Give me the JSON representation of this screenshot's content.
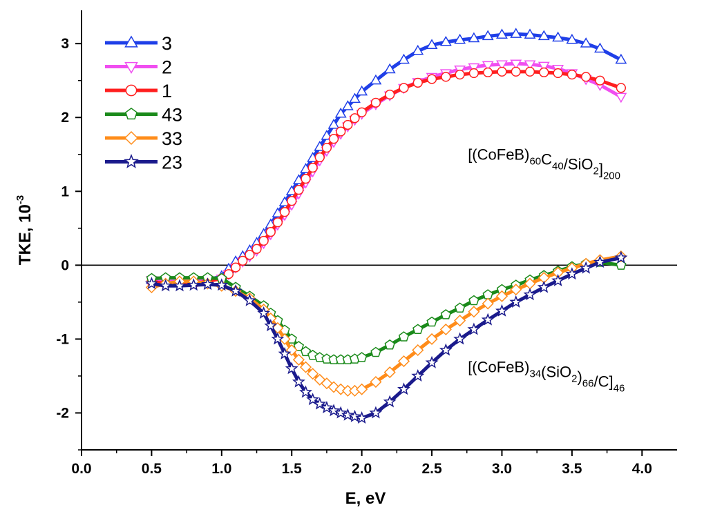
{
  "chart_data": {
    "type": "line",
    "xlabel": "E, eV",
    "ylabel_main": "TKE, 10",
    "ylabel_exp": "-3",
    "xlim": [
      0.0,
      4.25
    ],
    "ylim": [
      -2.5,
      3.45
    ],
    "xticks": [
      0.0,
      0.5,
      1.0,
      1.5,
      2.0,
      2.5,
      3.0,
      3.5,
      4.0
    ],
    "xtick_labels": [
      "0.0",
      "0.5",
      "1.0",
      "1.5",
      "2.0",
      "2.5",
      "3.0",
      "3.5",
      "4.0"
    ],
    "yticks": [
      -2,
      -1,
      0,
      1,
      2,
      3
    ],
    "ytick_labels": [
      "-2",
      "-1",
      "0",
      "1",
      "2",
      "3"
    ],
    "zero_line": true,
    "grid": false,
    "legend_position": "top-left",
    "annotations": [
      {
        "parts": [
          {
            "t": "[(CoFeB)"
          },
          {
            "t": "60",
            "sub": true
          },
          {
            "t": "C"
          },
          {
            "t": "40",
            "sub": true
          },
          {
            "t": "/SiO"
          },
          {
            "t": "2",
            "sub": true
          },
          {
            "t": "]"
          },
          {
            "t": "200",
            "sub": true
          }
        ],
        "x": 2.55,
        "y": 1.43
      },
      {
        "parts": [
          {
            "t": "[(CoFeB)"
          },
          {
            "t": "34",
            "sub": true
          },
          {
            "t": "(SiO"
          },
          {
            "t": "2",
            "sub": true
          },
          {
            "t": ")"
          },
          {
            "t": "66",
            "sub": true
          },
          {
            "t": "/C]"
          },
          {
            "t": "46",
            "sub": true
          }
        ],
        "x": 2.55,
        "y": -1.45
      }
    ],
    "series": [
      {
        "name": "3",
        "color": "#1f3fe8",
        "marker": "triangle-up",
        "x": [
          0.5,
          0.6,
          0.7,
          0.8,
          0.9,
          1.0,
          1.05,
          1.1,
          1.15,
          1.2,
          1.25,
          1.3,
          1.35,
          1.4,
          1.45,
          1.5,
          1.55,
          1.6,
          1.65,
          1.7,
          1.75,
          1.8,
          1.85,
          1.9,
          1.95,
          2.0,
          2.1,
          2.2,
          2.3,
          2.4,
          2.5,
          2.6,
          2.7,
          2.8,
          2.9,
          3.0,
          3.1,
          3.2,
          3.3,
          3.4,
          3.5,
          3.6,
          3.7,
          3.85
        ],
        "y": [
          -0.2,
          -0.22,
          -0.22,
          -0.22,
          -0.2,
          -0.15,
          -0.05,
          0.05,
          0.12,
          0.2,
          0.3,
          0.42,
          0.55,
          0.7,
          0.85,
          1.0,
          1.15,
          1.3,
          1.45,
          1.6,
          1.75,
          1.9,
          2.05,
          2.15,
          2.25,
          2.35,
          2.5,
          2.65,
          2.78,
          2.9,
          2.98,
          3.02,
          3.05,
          3.07,
          3.1,
          3.12,
          3.13,
          3.12,
          3.1,
          3.08,
          3.05,
          3.0,
          2.93,
          2.78
        ]
      },
      {
        "name": "2",
        "color": "#f04ef0",
        "marker": "triangle-down",
        "x": [
          0.5,
          0.6,
          0.7,
          0.8,
          0.9,
          1.0,
          1.05,
          1.1,
          1.15,
          1.2,
          1.25,
          1.3,
          1.35,
          1.4,
          1.45,
          1.5,
          1.55,
          1.6,
          1.65,
          1.7,
          1.75,
          1.8,
          1.85,
          1.9,
          1.95,
          2.0,
          2.1,
          2.2,
          2.3,
          2.4,
          2.5,
          2.6,
          2.7,
          2.8,
          2.9,
          3.0,
          3.1,
          3.2,
          3.3,
          3.4,
          3.5,
          3.6,
          3.7,
          3.85
        ],
        "y": [
          -0.2,
          -0.22,
          -0.22,
          -0.22,
          -0.2,
          -0.18,
          -0.12,
          -0.03,
          0.05,
          0.12,
          0.2,
          0.3,
          0.42,
          0.55,
          0.68,
          0.82,
          0.97,
          1.12,
          1.27,
          1.42,
          1.55,
          1.67,
          1.78,
          1.88,
          1.97,
          2.05,
          2.18,
          2.3,
          2.4,
          2.48,
          2.55,
          2.6,
          2.65,
          2.68,
          2.71,
          2.72,
          2.73,
          2.72,
          2.7,
          2.66,
          2.6,
          2.52,
          2.44,
          2.28
        ]
      },
      {
        "name": "1",
        "color": "#ff1f1f",
        "marker": "circle",
        "x": [
          0.5,
          0.6,
          0.7,
          0.8,
          0.9,
          1.0,
          1.05,
          1.1,
          1.15,
          1.2,
          1.25,
          1.3,
          1.35,
          1.4,
          1.45,
          1.5,
          1.55,
          1.6,
          1.65,
          1.7,
          1.75,
          1.8,
          1.85,
          1.9,
          1.95,
          2.0,
          2.1,
          2.2,
          2.3,
          2.4,
          2.5,
          2.6,
          2.7,
          2.8,
          2.9,
          3.0,
          3.1,
          3.2,
          3.3,
          3.4,
          3.5,
          3.6,
          3.7,
          3.85
        ],
        "y": [
          -0.22,
          -0.25,
          -0.25,
          -0.25,
          -0.22,
          -0.18,
          -0.12,
          -0.03,
          0.06,
          0.14,
          0.22,
          0.33,
          0.45,
          0.58,
          0.72,
          0.87,
          1.02,
          1.17,
          1.32,
          1.46,
          1.59,
          1.71,
          1.81,
          1.9,
          1.99,
          2.07,
          2.2,
          2.31,
          2.4,
          2.47,
          2.52,
          2.55,
          2.58,
          2.6,
          2.61,
          2.62,
          2.62,
          2.62,
          2.61,
          2.6,
          2.58,
          2.55,
          2.5,
          2.4
        ]
      },
      {
        "name": "43",
        "color": "#1a8a1a",
        "marker": "pentagon",
        "x": [
          0.5,
          0.6,
          0.7,
          0.8,
          0.9,
          1.0,
          1.1,
          1.2,
          1.3,
          1.35,
          1.4,
          1.45,
          1.5,
          1.55,
          1.6,
          1.65,
          1.7,
          1.75,
          1.8,
          1.85,
          1.9,
          1.95,
          2.0,
          2.1,
          2.2,
          2.3,
          2.4,
          2.5,
          2.6,
          2.7,
          2.8,
          2.9,
          3.0,
          3.1,
          3.2,
          3.3,
          3.4,
          3.5,
          3.6,
          3.7,
          3.85
        ],
        "y": [
          -0.18,
          -0.17,
          -0.17,
          -0.17,
          -0.17,
          -0.18,
          -0.3,
          -0.42,
          -0.55,
          -0.65,
          -0.75,
          -0.88,
          -1.0,
          -1.1,
          -1.17,
          -1.22,
          -1.25,
          -1.27,
          -1.28,
          -1.28,
          -1.28,
          -1.27,
          -1.25,
          -1.18,
          -1.08,
          -0.97,
          -0.87,
          -0.77,
          -0.67,
          -0.58,
          -0.48,
          -0.4,
          -0.33,
          -0.27,
          -0.2,
          -0.14,
          -0.08,
          -0.02,
          0.02,
          0.04,
          0.0
        ]
      },
      {
        "name": "33",
        "color": "#ff8c1a",
        "marker": "diamond",
        "x": [
          0.5,
          0.6,
          0.7,
          0.8,
          0.9,
          1.0,
          1.1,
          1.2,
          1.3,
          1.35,
          1.4,
          1.45,
          1.5,
          1.55,
          1.6,
          1.65,
          1.7,
          1.75,
          1.8,
          1.85,
          1.9,
          1.95,
          2.0,
          2.1,
          2.2,
          2.3,
          2.4,
          2.5,
          2.6,
          2.7,
          2.8,
          2.9,
          3.0,
          3.1,
          3.2,
          3.3,
          3.4,
          3.5,
          3.6,
          3.7,
          3.85
        ],
        "y": [
          -0.3,
          -0.25,
          -0.22,
          -0.22,
          -0.25,
          -0.28,
          -0.35,
          -0.45,
          -0.6,
          -0.72,
          -0.85,
          -1.0,
          -1.15,
          -1.28,
          -1.38,
          -1.47,
          -1.55,
          -1.6,
          -1.65,
          -1.68,
          -1.7,
          -1.7,
          -1.68,
          -1.58,
          -1.45,
          -1.3,
          -1.15,
          -1.0,
          -0.87,
          -0.75,
          -0.63,
          -0.52,
          -0.42,
          -0.33,
          -0.25,
          -0.17,
          -0.1,
          -0.04,
          0.02,
          0.07,
          0.12
        ]
      },
      {
        "name": "23",
        "color": "#1a1a8c",
        "marker": "star",
        "x": [
          0.5,
          0.6,
          0.7,
          0.8,
          0.9,
          1.0,
          1.1,
          1.2,
          1.3,
          1.35,
          1.4,
          1.45,
          1.5,
          1.55,
          1.6,
          1.65,
          1.7,
          1.75,
          1.8,
          1.85,
          1.9,
          1.95,
          2.0,
          2.1,
          2.2,
          2.3,
          2.4,
          2.5,
          2.6,
          2.7,
          2.8,
          2.9,
          3.0,
          3.1,
          3.2,
          3.3,
          3.4,
          3.5,
          3.6,
          3.7,
          3.85
        ],
        "y": [
          -0.25,
          -0.28,
          -0.28,
          -0.27,
          -0.26,
          -0.27,
          -0.35,
          -0.48,
          -0.65,
          -0.82,
          -1.0,
          -1.2,
          -1.4,
          -1.58,
          -1.72,
          -1.82,
          -1.88,
          -1.93,
          -1.97,
          -2.0,
          -2.03,
          -2.05,
          -2.07,
          -2.0,
          -1.85,
          -1.68,
          -1.5,
          -1.32,
          -1.15,
          -1.0,
          -0.87,
          -0.74,
          -0.62,
          -0.5,
          -0.4,
          -0.3,
          -0.21,
          -0.12,
          -0.04,
          0.04,
          0.1
        ]
      }
    ]
  }
}
